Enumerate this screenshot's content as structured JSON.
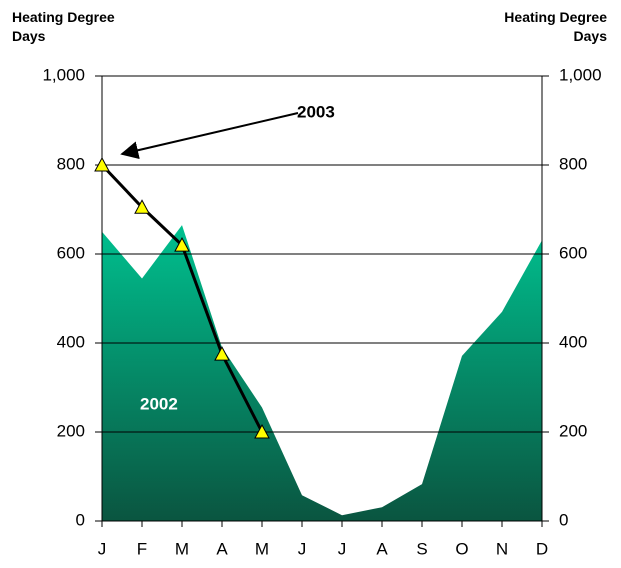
{
  "chart_data": {
    "type": "area_line",
    "y_label": "Heating Degree Days",
    "y2_label": "Heating Degree Days",
    "categories": [
      "J",
      "F",
      "M",
      "A",
      "M",
      "J",
      "J",
      "A",
      "S",
      "O",
      "N",
      "D"
    ],
    "series": [
      {
        "name": "2002",
        "color": "#00c08f",
        "values": [
          650,
          545,
          665,
          390,
          255,
          58,
          13,
          31,
          83,
          371,
          470,
          631
        ]
      },
      {
        "name": "2003",
        "color": "#000000",
        "marker_color": "#ffff00",
        "axis": "y2",
        "values": [
          800,
          705,
          620,
          375,
          200,
          null,
          null,
          null,
          null,
          null,
          null,
          null
        ]
      }
    ],
    "ylim": [
      0,
      1000
    ],
    "yticks": [
      0,
      200,
      400,
      600,
      800,
      {
        "value": 1000,
        "label": "1,000"
      }
    ],
    "y2lim": [
      0,
      1000
    ],
    "y2ticks": [
      0,
      200,
      400,
      600,
      800,
      {
        "value": 1000,
        "label": "1,000"
      }
    ],
    "grid": true
  }
}
